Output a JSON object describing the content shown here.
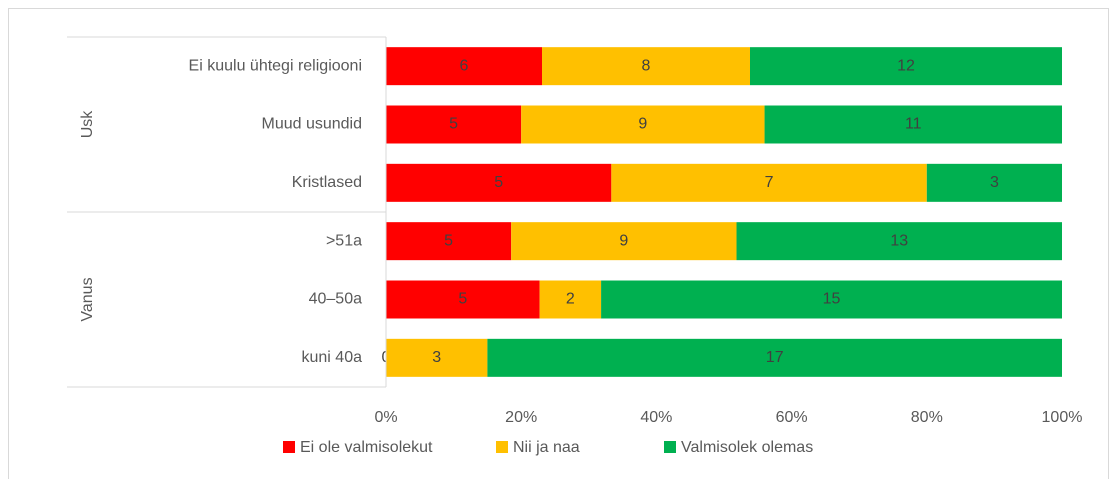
{
  "chart_data": {
    "type": "bar",
    "orientation": "horizontal",
    "stacking": "percent",
    "categories": [
      "Ei kuulu ühtegi religiooni",
      "Muud usundid",
      "Kristlased",
      ">51a",
      "40–50a",
      "kuni 40a"
    ],
    "groups": [
      {
        "label": "Usk",
        "size": 3
      },
      {
        "label": "Vanus",
        "size": 3
      }
    ],
    "series": [
      {
        "name": "Ei ole valmisolekut",
        "color": "#ff0000",
        "values": [
          6,
          5,
          5,
          5,
          5,
          0
        ]
      },
      {
        "name": "Nii ja naa",
        "color": "#ffc000",
        "values": [
          8,
          9,
          7,
          9,
          2,
          3
        ]
      },
      {
        "name": "Valmisolek olemas",
        "color": "#00b050",
        "values": [
          12,
          11,
          3,
          13,
          15,
          17
        ]
      }
    ],
    "xlim": [
      0,
      100
    ],
    "xticks": [
      {
        "value": 0,
        "label": "0%"
      },
      {
        "value": 20,
        "label": "20%"
      },
      {
        "value": 40,
        "label": "40%"
      },
      {
        "value": 60,
        "label": "60%"
      },
      {
        "value": 80,
        "label": "80%"
      },
      {
        "value": 100,
        "label": "100%"
      }
    ],
    "grid": false,
    "legend": "bottom"
  }
}
